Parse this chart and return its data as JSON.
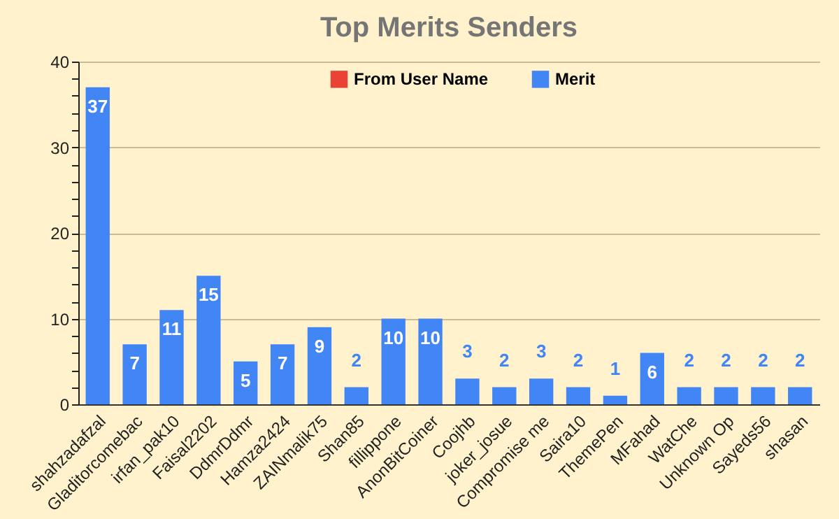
{
  "chart_data": {
    "type": "bar",
    "title": "Top Merits Senders",
    "categories": [
      "shahzadafzal",
      "Gladitorcomebac",
      "irfan_pak10",
      "Faisal2202",
      "DdmrDdmr",
      "Hamza2424",
      "ZAINmalik75",
      "Shan85",
      "fillippone",
      "AnonBitCoiner",
      "Coojhb",
      "joker_josue",
      "Compromise me",
      "Saira10",
      "ThemePen",
      "MFahad",
      "WatChe",
      "Unknown Op",
      "Sayeds56",
      "shasan"
    ],
    "series": [
      {
        "name": "From User Name",
        "color": "#ea4335",
        "values": [
          null,
          null,
          null,
          null,
          null,
          null,
          null,
          null,
          null,
          null,
          null,
          null,
          null,
          null,
          null,
          null,
          null,
          null,
          null,
          null
        ]
      },
      {
        "name": "Merit",
        "color": "#4285f4",
        "values": [
          37,
          7,
          11,
          15,
          5,
          7,
          9,
          2,
          10,
          10,
          3,
          2,
          3,
          2,
          1,
          6,
          2,
          2,
          2,
          2
        ]
      }
    ],
    "ylim": [
      0,
      40
    ],
    "yticks": [
      0,
      {
        "value": 2,
        "label": null
      },
      {
        "value": 4,
        "label": null
      },
      {
        "value": 6,
        "label": null
      },
      {
        "value": 8,
        "label": null
      },
      10,
      {
        "value": 12,
        "label": null
      },
      {
        "value": 14,
        "label": null
      },
      {
        "value": 16,
        "label": null
      },
      {
        "value": 18,
        "label": null
      },
      20,
      {
        "value": 22,
        "label": null
      },
      {
        "value": 24,
        "label": null
      },
      {
        "value": 26,
        "label": null
      },
      {
        "value": 28,
        "label": null
      },
      30,
      {
        "value": 32,
        "label": null
      },
      {
        "value": 34,
        "label": null
      },
      {
        "value": 36,
        "label": null
      },
      {
        "value": 38,
        "label": null
      },
      40
    ],
    "grid": "y",
    "legend": "top",
    "data_labels": true
  }
}
